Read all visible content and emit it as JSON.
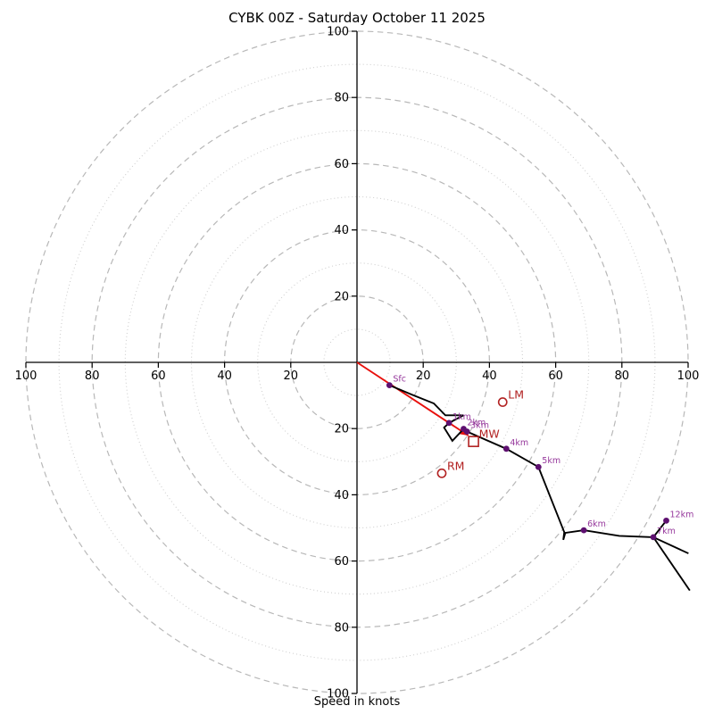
{
  "title": "CYBK 00Z - Saturday October 11 2025",
  "xlabel": "Speed in knots",
  "colors": {
    "trace": "#000000",
    "axis": "#000000",
    "grid_dashed": "#b8b8b8",
    "grid_dotted": "#cfcfcf",
    "altitude_dot": "#5e1070",
    "altitude_label": "#96389c",
    "storm_marker": "#b22222",
    "mean_wind_arrow": "#e8100c"
  },
  "chart_data": {
    "type": "line",
    "subtype": "hodograph",
    "title": "CYBK 00Z - Saturday October 11 2025",
    "xlabel": "Speed in knots",
    "units": "knots",
    "xlim": [
      -100,
      100
    ],
    "ylim": [
      -100,
      100
    ],
    "axis_ticks": [
      20,
      40,
      60,
      80,
      100
    ],
    "grid_rings_dashed": [
      20,
      40,
      60,
      80,
      100
    ],
    "grid_rings_dotted": [
      10,
      30,
      50,
      70,
      90
    ],
    "trace_segments": [
      [
        [
          9.8,
          -6.9
        ],
        [
          16.7,
          -9.8
        ],
        [
          23.2,
          -12.4
        ],
        [
          26.7,
          -16.0
        ],
        [
          32.1,
          -16.0
        ],
        [
          27.8,
          -18.3
        ],
        [
          26.3,
          -19.7
        ],
        [
          28.8,
          -23.7
        ],
        [
          32.2,
          -20.1
        ],
        [
          33.2,
          -20.9
        ],
        [
          45.1,
          -26.1
        ],
        [
          54.8,
          -31.6
        ],
        [
          62.6,
          -51.3
        ],
        [
          62.3,
          -53.6
        ],
        [
          62.9,
          -51.5
        ],
        [
          68.5,
          -50.7
        ],
        [
          79.2,
          -52.4
        ],
        [
          89.5,
          -52.8
        ],
        [
          100.1,
          -57.7
        ]
      ],
      [
        [
          100.5,
          -68.9
        ],
        [
          89.5,
          -52.8
        ]
      ],
      [
        [
          89.5,
          -52.8
        ],
        [
          93.4,
          -47.8
        ]
      ]
    ],
    "altitude_markers": [
      {
        "label": "Sfc",
        "u": 9.8,
        "v": -6.9
      },
      {
        "label": "1km",
        "u": 27.8,
        "v": -18.3
      },
      {
        "label": "2km",
        "u": 32.2,
        "v": -20.1
      },
      {
        "label": "3km",
        "u": 33.2,
        "v": -20.9
      },
      {
        "label": "4km",
        "u": 45.1,
        "v": -26.1
      },
      {
        "label": "5km",
        "u": 54.8,
        "v": -31.6
      },
      {
        "label": "6km",
        "u": 68.5,
        "v": -50.7
      },
      {
        "label": "7km",
        "u": 89.5,
        "v": -52.8
      },
      {
        "label": "12km",
        "u": 93.4,
        "v": -47.8
      }
    ],
    "storm_markers": [
      {
        "label": "RM",
        "shape": "circle",
        "u": 25.6,
        "v": -33.5
      },
      {
        "label": "LM",
        "shape": "circle",
        "u": 44.0,
        "v": -12.0
      },
      {
        "label": "MW",
        "shape": "square",
        "u": 35.2,
        "v": -23.9
      }
    ],
    "mean_wind_arrow": {
      "from": [
        0,
        0
      ],
      "to": [
        33.6,
        -22.1
      ]
    }
  }
}
